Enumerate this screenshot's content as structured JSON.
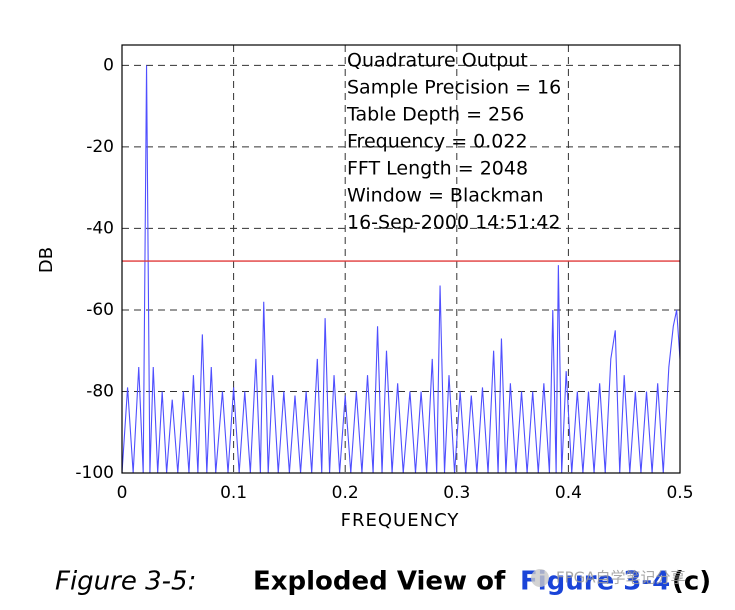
{
  "chart_data": {
    "type": "line",
    "annotations": [
      "Quadrature Output",
      "Sample Precision = 16",
      "Table Depth = 256",
      "Frequency = 0.022",
      "FFT Length = 2048",
      "Window = Blackman",
      "16-Sep-2000 14:51:42"
    ],
    "xlabel": "FREQUENCY",
    "ylabel": "DB",
    "x": [
      0,
      0.005,
      0.01,
      0.015,
      0.019,
      0.022,
      0.025,
      0.028,
      0.032,
      0.036,
      0.04,
      0.045,
      0.05,
      0.055,
      0.06,
      0.064,
      0.068,
      0.072,
      0.076,
      0.08,
      0.084,
      0.09,
      0.095,
      0.1,
      0.105,
      0.11,
      0.115,
      0.12,
      0.124,
      0.127,
      0.131,
      0.135,
      0.14,
      0.145,
      0.15,
      0.155,
      0.16,
      0.165,
      0.17,
      0.175,
      0.179,
      0.182,
      0.186,
      0.19,
      0.195,
      0.2,
      0.205,
      0.21,
      0.215,
      0.22,
      0.225,
      0.229,
      0.233,
      0.237,
      0.242,
      0.247,
      0.252,
      0.258,
      0.263,
      0.268,
      0.273,
      0.278,
      0.282,
      0.285,
      0.289,
      0.293,
      0.298,
      0.303,
      0.308,
      0.313,
      0.318,
      0.323,
      0.328,
      0.333,
      0.337,
      0.34,
      0.344,
      0.348,
      0.353,
      0.358,
      0.363,
      0.368,
      0.373,
      0.378,
      0.383,
      0.386,
      0.389,
      0.391,
      0.394,
      0.398,
      0.403,
      0.408,
      0.413,
      0.418,
      0.423,
      0.428,
      0.433,
      0.438,
      0.442,
      0.446,
      0.45,
      0.455,
      0.46,
      0.465,
      0.47,
      0.475,
      0.48,
      0.485,
      0.49,
      0.494,
      0.497,
      0.5
    ],
    "values": [
      -100,
      -79,
      -100,
      -74,
      -100,
      0,
      -100,
      -74,
      -100,
      -80,
      -100,
      -82,
      -100,
      -80,
      -100,
      -76,
      -100,
      -66,
      -100,
      -74,
      -100,
      -80,
      -100,
      -79,
      -100,
      -80,
      -100,
      -72,
      -100,
      -58,
      -100,
      -76,
      -100,
      -80,
      -100,
      -81,
      -100,
      -80,
      -100,
      -72,
      -100,
      -62,
      -100,
      -76,
      -100,
      -81,
      -100,
      -80,
      -100,
      -76,
      -100,
      -64,
      -100,
      -70,
      -100,
      -78,
      -100,
      -80,
      -100,
      -80,
      -100,
      -72,
      -100,
      -54,
      -100,
      -76,
      -100,
      -80,
      -100,
      -81,
      -100,
      -79,
      -100,
      -70,
      -100,
      -67,
      -100,
      -78,
      -100,
      -80,
      -100,
      -80,
      -100,
      -78,
      -100,
      -60,
      -100,
      -49,
      -100,
      -75,
      -100,
      -80,
      -100,
      -80,
      -100,
      -78,
      -100,
      -72,
      -65,
      -100,
      -76,
      -100,
      -80,
      -100,
      -80,
      -100,
      -78,
      -100,
      -74,
      -64,
      -60,
      -72
    ],
    "color": "#4f4fff",
    "reference_line": -48,
    "reference_color": "#e03a3a",
    "xlim": [
      0,
      0.5
    ],
    "xticks": [
      0,
      0.1,
      0.2,
      0.3,
      0.4,
      0.5
    ],
    "ylim": [
      -100,
      5
    ],
    "yticks": [
      0,
      -20,
      -40,
      -60,
      -80,
      -100
    ],
    "grid": true
  },
  "caption": {
    "label": "Figure 3-5:",
    "text": "Exploded View of",
    "link": "Figure 3-4",
    "suffix": "(c)"
  },
  "watermark": "FPGA自学笔记分享"
}
